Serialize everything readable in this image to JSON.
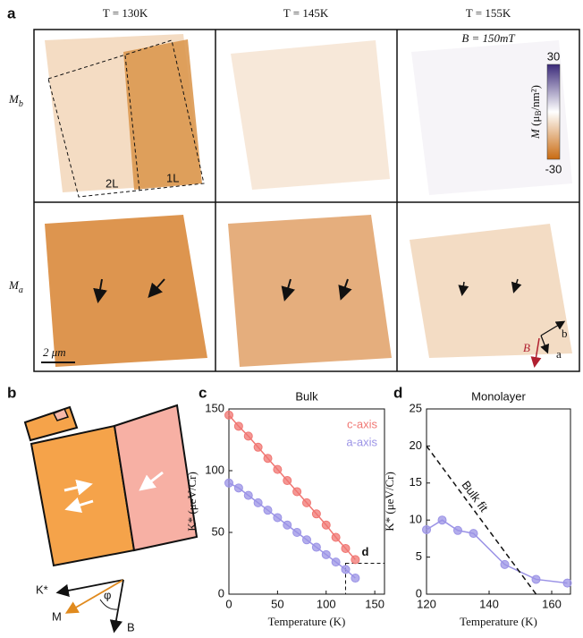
{
  "panels": [
    "a",
    "b",
    "c",
    "d"
  ],
  "maps": {
    "columns": [
      "T = 130K",
      "T = 145K",
      "T = 155K"
    ],
    "rows": [
      {
        "symbol": "M",
        "subscript": "b"
      },
      {
        "symbol": "M",
        "subscript": "a"
      }
    ],
    "field": "B = 150mT",
    "layers": [
      "2L",
      "1L"
    ],
    "scale_bar": "2 μm",
    "axes": [
      "b",
      "a",
      "B"
    ],
    "colorbar": {
      "symbol": "M",
      "unit_start": "(μ",
      "unit_sub": "B",
      "unit_end": "/nm²)",
      "ticks": [
        30,
        -30
      ],
      "lim": [
        -30,
        30
      ]
    }
  },
  "schematic": {
    "labels": [
      "K*",
      "M",
      "φ",
      "B"
    ]
  },
  "chart_data": [
    {
      "type": "line",
      "title": "Bulk",
      "xlabel": "Temperature (K)",
      "ylabel": "K* (μeV/Cr)",
      "x": [
        0,
        10,
        20,
        30,
        40,
        50,
        60,
        70,
        80,
        90,
        100,
        110,
        120,
        130
      ],
      "series": [
        {
          "name": "c-axis",
          "color": "#f07672",
          "values": [
            145,
            136,
            128,
            119,
            110,
            101,
            92,
            83,
            74,
            65,
            56,
            46,
            37,
            28
          ]
        },
        {
          "name": "a-axis",
          "color": "#9b93e6",
          "values": [
            90,
            86,
            80,
            74,
            68,
            62,
            56,
            50,
            44,
            38,
            32,
            26,
            20,
            13
          ]
        }
      ],
      "xlim": [
        0,
        160
      ],
      "xticks": [
        0,
        50,
        100,
        150
      ],
      "ylim": [
        0,
        150
      ],
      "yticks": [
        0,
        50,
        100,
        150
      ],
      "legend": "upper right",
      "zoom_region": {
        "label": "d",
        "xlim": [
          120,
          160
        ],
        "ylim": [
          0,
          25
        ]
      }
    },
    {
      "type": "line",
      "title": "Monolayer",
      "xlabel": "Temperature (K)",
      "ylabel": "K* (μeV/Cr)",
      "x": [
        120,
        125,
        130,
        135,
        145,
        155,
        165
      ],
      "series": [
        {
          "color": "#9b93e6",
          "values": [
            8.7,
            10,
            8.6,
            8.2,
            4,
            2,
            1.5
          ]
        },
        {
          "name": "Bulk fit",
          "color": "#111111",
          "dashed": true,
          "x": [
            120,
            155
          ],
          "values": [
            20,
            0
          ]
        }
      ],
      "xlim": [
        120,
        166
      ],
      "xticks": [
        120,
        140,
        160
      ],
      "ylim": [
        0,
        25
      ],
      "yticks": [
        0,
        5,
        10,
        15,
        20,
        25
      ]
    }
  ]
}
